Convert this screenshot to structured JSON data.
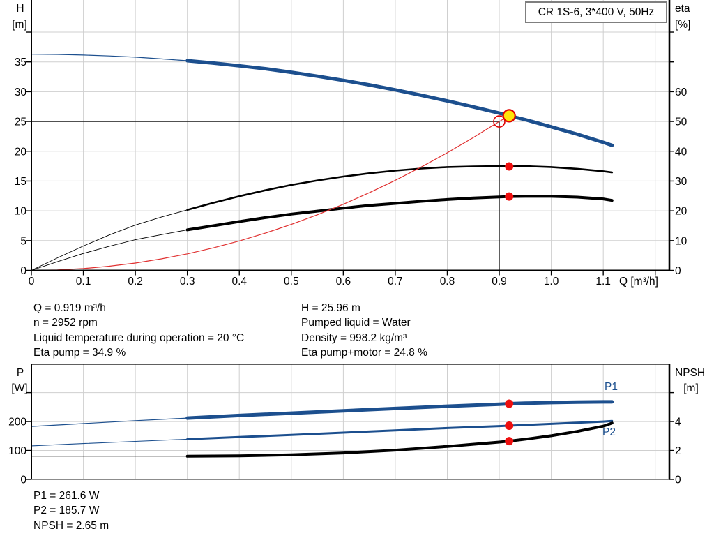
{
  "title_box": {
    "label": "CR 1S-6, 3*400 V, 50Hz"
  },
  "colors": {
    "curve_blue": "#1c4f8e",
    "curve_black": "#000000",
    "system_red": "#e03030",
    "marker_red": "#ee0f0f",
    "marker_ring_red": "#e00000",
    "marker_yellow": "#ffe50a",
    "grid": "#cfcfcf",
    "axis": "#000000",
    "axis_gray": "#666666",
    "crosshair": "#1a1a1a"
  },
  "info": {
    "left": [
      "Q = 0.919 m³/h",
      "n = 2952 rpm",
      "Liquid temperature during operation = 20 °C",
      "Eta pump = 34.9 %"
    ],
    "right": [
      "H = 25.96 m",
      "Pumped liquid = Water",
      "Density = 998.2 kg/m³",
      "Eta pump+motor = 24.8 %"
    ]
  },
  "results": [
    "P1 = 261.6 W",
    "P2 = 185.7 W",
    "NPSH = 2.65 m"
  ],
  "chart_data": {
    "top": {
      "type": "line",
      "title": "CR 1S-6, 3*400 V, 50Hz",
      "grid": true,
      "legend": "none",
      "x_axis": {
        "label": "Q [m³/h]",
        "tick_labels": [
          "0",
          "0.1",
          "0.2",
          "0.3",
          "0.4",
          "0.5",
          "0.6",
          "0.7",
          "0.8",
          "0.9",
          "1.0",
          "1.1"
        ],
        "unlabeled_ticks": [
          1.2
        ],
        "grid_step": 0.1,
        "grid_end": 1.2,
        "max": 1.227
      },
      "y_left": {
        "caption": [
          "H",
          "[m]"
        ],
        "tick_labels": [
          "0",
          "5",
          "10",
          "15",
          "20",
          "25",
          "30",
          "35"
        ],
        "unlabeled_ticks": [
          40
        ],
        "max": 45.4
      },
      "y_right": {
        "caption": [
          "eta",
          "[%]"
        ],
        "tick_labels": [
          "0",
          "10",
          "20",
          "30",
          "40",
          "50",
          "60"
        ],
        "unlabeled_ticks": [
          70,
          80
        ],
        "max": 90.8
      },
      "series": [
        {
          "name": "head-curve",
          "axis": "left",
          "color_key": "curve_blue",
          "thin_until": 0.3,
          "w_thin": 1.2,
          "w_thick": 5,
          "points": [
            [
              0,
              36.3
            ],
            [
              0.05,
              36.25
            ],
            [
              0.1,
              36.15
            ],
            [
              0.15,
              36.0
            ],
            [
              0.2,
              35.8
            ],
            [
              0.25,
              35.5
            ],
            [
              0.3,
              35.2
            ],
            [
              0.35,
              34.8
            ],
            [
              0.4,
              34.35
            ],
            [
              0.45,
              33.85
            ],
            [
              0.5,
              33.25
            ],
            [
              0.55,
              32.6
            ],
            [
              0.6,
              31.9
            ],
            [
              0.65,
              31.15
            ],
            [
              0.7,
              30.3
            ],
            [
              0.75,
              29.4
            ],
            [
              0.8,
              28.45
            ],
            [
              0.85,
              27.45
            ],
            [
              0.9,
              26.4
            ],
            [
              0.919,
              25.96
            ],
            [
              0.95,
              25.3
            ],
            [
              1.0,
              24.1
            ],
            [
              1.05,
              22.85
            ],
            [
              1.1,
              21.5
            ],
            [
              1.117,
              21.0
            ]
          ]
        },
        {
          "name": "eta-pump-curve",
          "axis": "right",
          "color_key": "curve_black",
          "thin_until": 0.3,
          "w_thin": 0.9,
          "w_thick": 2.6,
          "points": [
            [
              0,
              0
            ],
            [
              0.05,
              4.2
            ],
            [
              0.1,
              8.2
            ],
            [
              0.15,
              11.9
            ],
            [
              0.2,
              15.2
            ],
            [
              0.25,
              17.9
            ],
            [
              0.3,
              20.3
            ],
            [
              0.35,
              22.7
            ],
            [
              0.4,
              24.9
            ],
            [
              0.45,
              26.9
            ],
            [
              0.5,
              28.7
            ],
            [
              0.55,
              30.2
            ],
            [
              0.6,
              31.5
            ],
            [
              0.65,
              32.6
            ],
            [
              0.7,
              33.5
            ],
            [
              0.75,
              34.2
            ],
            [
              0.8,
              34.7
            ],
            [
              0.85,
              34.9
            ],
            [
              0.9,
              35.0
            ],
            [
              0.919,
              34.9
            ],
            [
              0.95,
              35.0
            ],
            [
              1.0,
              34.7
            ],
            [
              1.05,
              34.1
            ],
            [
              1.1,
              33.3
            ],
            [
              1.117,
              32.9
            ]
          ]
        },
        {
          "name": "eta-pump-motor-curve",
          "axis": "right",
          "color_key": "curve_black",
          "thin_until": 0.3,
          "w_thin": 0.9,
          "w_thick": 4,
          "points": [
            [
              0,
              0
            ],
            [
              0.05,
              2.9
            ],
            [
              0.1,
              5.7
            ],
            [
              0.15,
              8.1
            ],
            [
              0.2,
              10.3
            ],
            [
              0.25,
              12.0
            ],
            [
              0.3,
              13.6
            ],
            [
              0.35,
              15.0
            ],
            [
              0.4,
              16.4
            ],
            [
              0.45,
              17.7
            ],
            [
              0.5,
              18.9
            ],
            [
              0.55,
              19.9
            ],
            [
              0.6,
              20.9
            ],
            [
              0.65,
              21.8
            ],
            [
              0.7,
              22.5
            ],
            [
              0.75,
              23.2
            ],
            [
              0.8,
              23.8
            ],
            [
              0.85,
              24.3
            ],
            [
              0.9,
              24.65
            ],
            [
              0.919,
              24.8
            ],
            [
              0.95,
              24.85
            ],
            [
              1.0,
              24.85
            ],
            [
              1.05,
              24.6
            ],
            [
              1.1,
              24.0
            ],
            [
              1.117,
              23.5
            ]
          ]
        },
        {
          "name": "system-curve",
          "axis": "left",
          "color_key": "system_red",
          "thin_until": null,
          "w_thin": 1.2,
          "w_thick": 1.2,
          "points": [
            [
              0,
              0
            ],
            [
              0.05,
              0.08
            ],
            [
              0.1,
              0.31
            ],
            [
              0.15,
              0.7
            ],
            [
              0.2,
              1.23
            ],
            [
              0.25,
              1.93
            ],
            [
              0.3,
              2.78
            ],
            [
              0.35,
              3.78
            ],
            [
              0.4,
              4.94
            ],
            [
              0.45,
              6.25
            ],
            [
              0.5,
              7.72
            ],
            [
              0.55,
              9.34
            ],
            [
              0.6,
              11.11
            ],
            [
              0.65,
              13.04
            ],
            [
              0.7,
              15.12
            ],
            [
              0.75,
              17.36
            ],
            [
              0.8,
              19.75
            ],
            [
              0.85,
              22.3
            ],
            [
              0.9,
              25.0
            ],
            [
              0.919,
              25.96
            ]
          ]
        }
      ],
      "crosshair": {
        "q": 0.9,
        "h": 25
      },
      "markers": [
        {
          "kind": "open-circle",
          "name": "requested-duty-point-marker",
          "q": 0.9,
          "axis": "left",
          "v": 25,
          "r": 8
        },
        {
          "kind": "dot",
          "name": "eta-pump-point-marker",
          "q": 0.919,
          "axis": "right",
          "v": 34.9,
          "r": 6
        },
        {
          "kind": "dot",
          "name": "eta-pump-motor-point-marker",
          "q": 0.919,
          "axis": "right",
          "v": 24.8,
          "r": 6
        },
        {
          "kind": "filled-circle",
          "name": "duty-point-marker",
          "q": 0.919,
          "axis": "left",
          "v": 25.96,
          "r": 8.5
        }
      ]
    },
    "bottom": {
      "type": "line",
      "grid": true,
      "legend": "inline-labels",
      "x_axis": {
        "tick_labels": [],
        "grid_step": 0.1,
        "grid_end": 1.2,
        "max": 1.227
      },
      "y_left": {
        "caption": [
          "P",
          "[W]"
        ],
        "tick_labels": [
          "0",
          "100",
          "200"
        ],
        "unlabeled_ticks": [
          300
        ],
        "max": 398
      },
      "y_right": {
        "caption": [
          "NPSH",
          "[m]"
        ],
        "tick_labels": [
          "0",
          "2",
          "4"
        ],
        "unlabeled_ticks": [
          6
        ],
        "max": 7.96
      },
      "series": [
        {
          "name": "p1-curve",
          "label": "P1",
          "axis": "left",
          "color_key": "curve_blue",
          "thin_until": 0.3,
          "w_thin": 1.2,
          "w_thick": 5,
          "points": [
            [
              0,
              183
            ],
            [
              0.1,
              193
            ],
            [
              0.2,
              203
            ],
            [
              0.3,
              212
            ],
            [
              0.4,
              221
            ],
            [
              0.5,
              229
            ],
            [
              0.6,
              237
            ],
            [
              0.7,
              245
            ],
            [
              0.8,
              253
            ],
            [
              0.9,
              260
            ],
            [
              0.919,
              261.6
            ],
            [
              0.95,
              263.5
            ],
            [
              1.0,
              265.5
            ],
            [
              1.05,
              267
            ],
            [
              1.1,
              268
            ],
            [
              1.117,
              268
            ]
          ]
        },
        {
          "name": "p2-curve",
          "label": "P2",
          "axis": "left",
          "color_key": "curve_blue",
          "thin_until": 0.3,
          "w_thin": 1.1,
          "w_thick": 3,
          "points": [
            [
              0,
              116
            ],
            [
              0.1,
              124
            ],
            [
              0.2,
              131.5
            ],
            [
              0.3,
              139
            ],
            [
              0.4,
              146.5
            ],
            [
              0.5,
              154
            ],
            [
              0.6,
              161.5
            ],
            [
              0.7,
              169.5
            ],
            [
              0.8,
              177.5
            ],
            [
              0.9,
              184.2
            ],
            [
              0.919,
              185.7
            ],
            [
              1.0,
              192
            ],
            [
              1.05,
              196
            ],
            [
              1.1,
              200
            ],
            [
              1.117,
              202
            ]
          ]
        },
        {
          "name": "npsh-curve",
          "axis": "right",
          "color_key": "curve_black",
          "thin_until": 0.3,
          "w_thin": 1,
          "w_thick": 4,
          "points": [
            [
              0,
              1.6
            ],
            [
              0.1,
              1.6
            ],
            [
              0.2,
              1.6
            ],
            [
              0.3,
              1.6
            ],
            [
              0.4,
              1.63
            ],
            [
              0.5,
              1.7
            ],
            [
              0.6,
              1.83
            ],
            [
              0.7,
              2.02
            ],
            [
              0.8,
              2.28
            ],
            [
              0.9,
              2.58
            ],
            [
              0.919,
              2.65
            ],
            [
              0.95,
              2.78
            ],
            [
              1.0,
              3.02
            ],
            [
              1.05,
              3.32
            ],
            [
              1.1,
              3.68
            ],
            [
              1.117,
              3.9
            ]
          ]
        }
      ],
      "markers": [
        {
          "kind": "dot",
          "name": "p1-point-marker",
          "q": 0.919,
          "axis": "left",
          "v": 261.6,
          "r": 6
        },
        {
          "kind": "dot",
          "name": "p2-point-marker",
          "q": 0.919,
          "axis": "left",
          "v": 185.7,
          "r": 6
        },
        {
          "kind": "dot",
          "name": "npsh-point-marker",
          "q": 0.919,
          "axis": "right",
          "v": 2.65,
          "r": 6
        }
      ]
    }
  }
}
